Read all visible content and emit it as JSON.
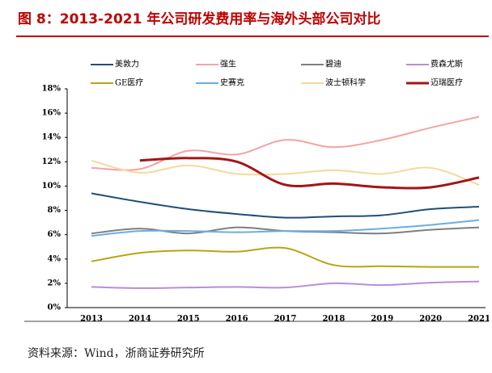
{
  "chart_data": {
    "type": "line",
    "title": "图 8：2013-2021 年公司研发费用率与海外头部公司对比",
    "source": "资料来源：Wind，浙商证券研究所",
    "categories": [
      "2013",
      "2014",
      "2015",
      "2016",
      "2017",
      "2018",
      "2019",
      "2020",
      "2021"
    ],
    "ylim": [
      0,
      18
    ],
    "yticks": [
      {
        "value": 0,
        "label": "0%"
      },
      {
        "value": 2,
        "label": "2%"
      },
      {
        "value": 4,
        "label": "4%"
      },
      {
        "value": 6,
        "label": "6%"
      },
      {
        "value": 8,
        "label": "8%"
      },
      {
        "value": 10,
        "label": "10%"
      },
      {
        "value": 12,
        "label": "12%"
      },
      {
        "value": 14,
        "label": "14%"
      },
      {
        "value": 16,
        "label": "16%"
      },
      {
        "value": 18,
        "label": "18%"
      }
    ],
    "series": [
      {
        "name": "美敦力",
        "color": "#1f4e79",
        "values": [
          9.4,
          8.7,
          8.1,
          7.7,
          7.4,
          7.5,
          7.6,
          8.1,
          8.3
        ]
      },
      {
        "name": "强生",
        "color": "#f4a3a3",
        "values": [
          11.5,
          11.4,
          12.9,
          12.6,
          13.8,
          13.2,
          13.8,
          14.8,
          15.7
        ]
      },
      {
        "name": "碧迪",
        "color": "#7f7f7f",
        "values": [
          6.1,
          6.5,
          6.1,
          6.6,
          6.3,
          6.2,
          6.1,
          6.4,
          6.6
        ]
      },
      {
        "name": "费森尤斯",
        "color": "#b58fd6",
        "values": [
          1.7,
          1.6,
          1.65,
          1.7,
          1.65,
          2.0,
          1.85,
          2.05,
          2.15
        ]
      },
      {
        "name": "GE医疗",
        "color": "#b8a416",
        "values": [
          3.8,
          4.5,
          4.7,
          4.6,
          4.9,
          3.5,
          3.4,
          3.35,
          3.35
        ]
      },
      {
        "name": "史赛克",
        "color": "#6aaee0",
        "values": [
          5.9,
          6.3,
          6.3,
          6.2,
          6.3,
          6.3,
          6.5,
          6.8,
          7.2
        ]
      },
      {
        "name": "波士顿科学",
        "color": "#f5d99a",
        "values": [
          12.1,
          11.1,
          11.7,
          11.0,
          11.0,
          11.3,
          11.0,
          11.5,
          10.1
        ]
      },
      {
        "name": "迈瑞医疗",
        "color": "#a31515",
        "values": [
          null,
          12.1,
          12.3,
          12.0,
          10.1,
          10.2,
          9.9,
          9.9,
          10.7
        ]
      }
    ]
  }
}
